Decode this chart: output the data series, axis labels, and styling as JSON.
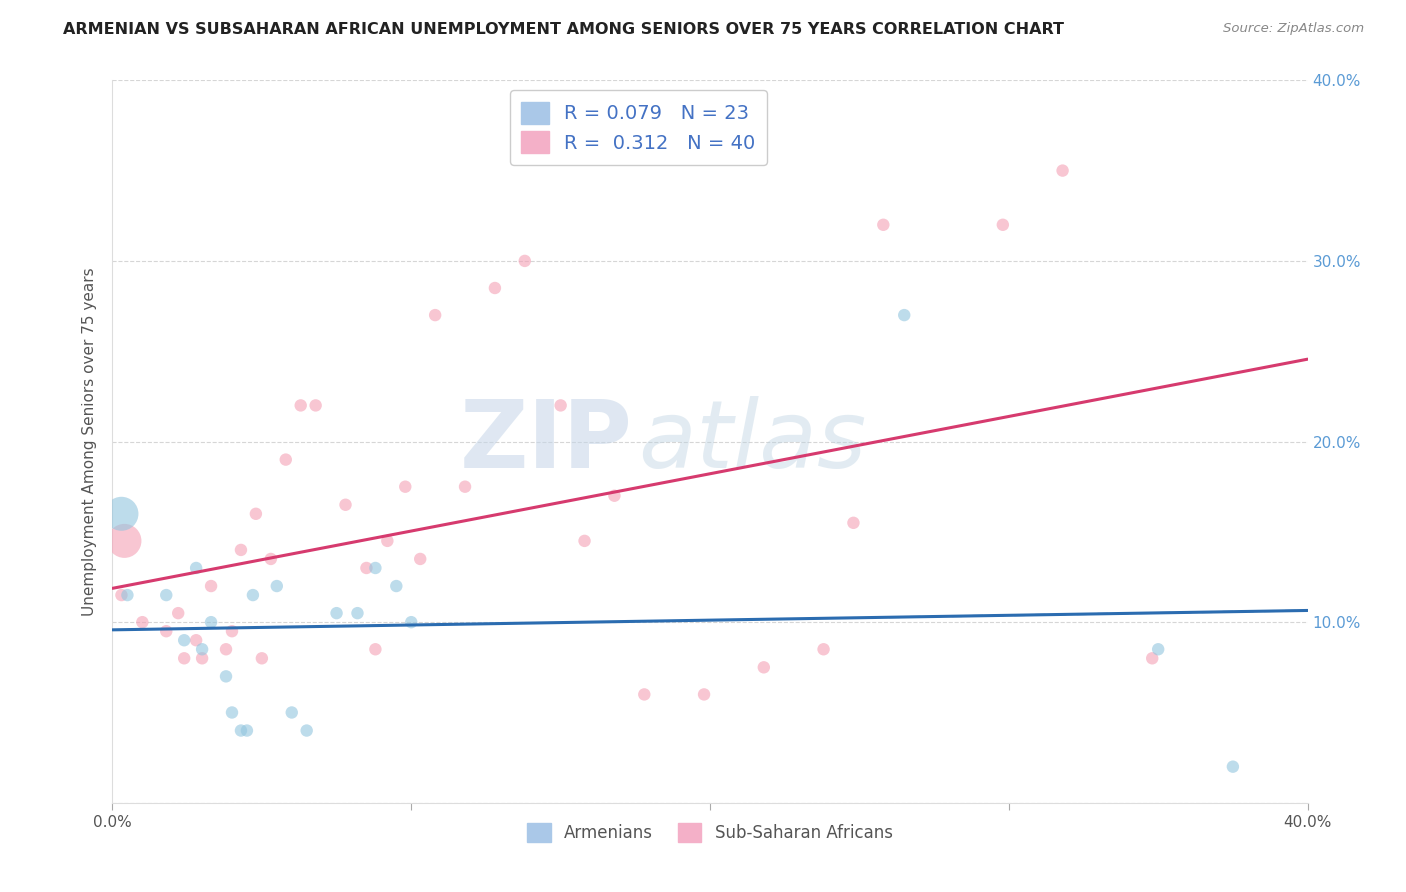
{
  "title": "ARMENIAN VS SUBSAHARAN AFRICAN UNEMPLOYMENT AMONG SENIORS OVER 75 YEARS CORRELATION CHART",
  "source": "Source: ZipAtlas.com",
  "ylabel": "Unemployment Among Seniors over 75 years",
  "xlabel_armenians": "Armenians",
  "xlabel_subsaharan": "Sub-Saharan Africans",
  "xlim": [
    0.0,
    0.4
  ],
  "ylim": [
    0.0,
    0.4
  ],
  "x_ticks": [
    0.0,
    0.1,
    0.2,
    0.3,
    0.4
  ],
  "y_ticks": [
    0.0,
    0.1,
    0.2,
    0.3,
    0.4
  ],
  "right_y_tick_labels": [
    "",
    "10.0%",
    "20.0%",
    "30.0%",
    "40.0%"
  ],
  "x_tick_labels": [
    "0.0%",
    "",
    "",
    "",
    "40.0%"
  ],
  "armenian_color": "#92c5de",
  "subsaharan_color": "#f4a0b5",
  "armenian_line_color": "#2b6cb0",
  "subsaharan_line_color": "#d63a6e",
  "r_armenian": 0.079,
  "n_armenian": 23,
  "r_subsaharan": 0.312,
  "n_subsaharan": 40,
  "watermark_zip": "ZIP",
  "watermark_atlas": "atlas",
  "armenian_x": [
    0.005,
    0.018,
    0.024,
    0.028,
    0.03,
    0.033,
    0.038,
    0.04,
    0.043,
    0.045,
    0.047,
    0.055,
    0.06,
    0.065,
    0.075,
    0.082,
    0.088,
    0.095,
    0.1,
    0.265,
    0.35,
    0.375,
    0.003
  ],
  "armenian_y": [
    0.115,
    0.115,
    0.09,
    0.13,
    0.085,
    0.1,
    0.07,
    0.05,
    0.04,
    0.04,
    0.115,
    0.12,
    0.05,
    0.04,
    0.105,
    0.105,
    0.13,
    0.12,
    0.1,
    0.27,
    0.085,
    0.02,
    0.16
  ],
  "armenian_sizes": [
    80,
    80,
    80,
    80,
    80,
    80,
    80,
    80,
    80,
    80,
    80,
    80,
    80,
    80,
    80,
    80,
    80,
    80,
    80,
    80,
    80,
    80,
    600
  ],
  "subsaharan_x": [
    0.003,
    0.01,
    0.018,
    0.022,
    0.024,
    0.028,
    0.03,
    0.033,
    0.038,
    0.04,
    0.043,
    0.048,
    0.05,
    0.053,
    0.058,
    0.063,
    0.068,
    0.078,
    0.085,
    0.088,
    0.092,
    0.098,
    0.103,
    0.108,
    0.118,
    0.128,
    0.138,
    0.15,
    0.158,
    0.168,
    0.178,
    0.198,
    0.218,
    0.238,
    0.248,
    0.258,
    0.298,
    0.318,
    0.348,
    0.004
  ],
  "subsaharan_y": [
    0.115,
    0.1,
    0.095,
    0.105,
    0.08,
    0.09,
    0.08,
    0.12,
    0.085,
    0.095,
    0.14,
    0.16,
    0.08,
    0.135,
    0.19,
    0.22,
    0.22,
    0.165,
    0.13,
    0.085,
    0.145,
    0.175,
    0.135,
    0.27,
    0.175,
    0.285,
    0.3,
    0.22,
    0.145,
    0.17,
    0.06,
    0.06,
    0.075,
    0.085,
    0.155,
    0.32,
    0.32,
    0.35,
    0.08,
    0.145
  ],
  "subsaharan_sizes": [
    80,
    80,
    80,
    80,
    80,
    80,
    80,
    80,
    80,
    80,
    80,
    80,
    80,
    80,
    80,
    80,
    80,
    80,
    80,
    80,
    80,
    80,
    80,
    80,
    80,
    80,
    80,
    80,
    80,
    80,
    80,
    80,
    80,
    80,
    80,
    80,
    80,
    80,
    80,
    600
  ]
}
